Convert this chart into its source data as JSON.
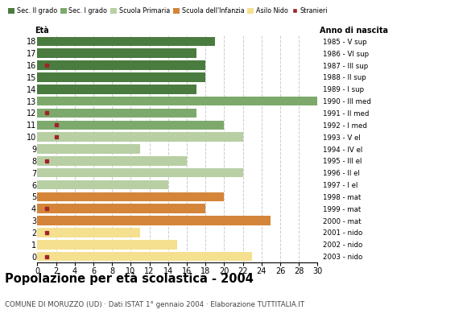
{
  "ages": [
    0,
    1,
    2,
    3,
    4,
    5,
    6,
    7,
    8,
    9,
    10,
    11,
    12,
    13,
    14,
    15,
    16,
    17,
    18
  ],
  "years": [
    "2003 - nido",
    "2002 - nido",
    "2001 - nido",
    "2000 - mat",
    "1999 - mat",
    "1998 - mat",
    "1997 - I el",
    "1996 - II el",
    "1995 - III el",
    "1994 - IV el",
    "1993 - V el",
    "1992 - I med",
    "1991 - II med",
    "1990 - III med",
    "1989 - I sup",
    "1988 - II sup",
    "1987 - III sup",
    "1986 - VI sup",
    "1985 - V sup"
  ],
  "bar_values": [
    23,
    15,
    11,
    25,
    18,
    20,
    14,
    22,
    16,
    11,
    22,
    20,
    17,
    30,
    17,
    18,
    18,
    17,
    19
  ],
  "stranieri": [
    1,
    0,
    1,
    0,
    1,
    0,
    0,
    0,
    1,
    0,
    2,
    2,
    1,
    0,
    0,
    0,
    1,
    0,
    0
  ],
  "bar_colors": [
    "#f5e090",
    "#f5e090",
    "#f5e090",
    "#d4853a",
    "#d4853a",
    "#d4853a",
    "#b8cfa4",
    "#b8cfa4",
    "#b8cfa4",
    "#b8cfa4",
    "#b8cfa4",
    "#7daa6c",
    "#7daa6c",
    "#7daa6c",
    "#4a7c3f",
    "#4a7c3f",
    "#4a7c3f",
    "#4a7c3f",
    "#4a7c3f"
  ],
  "legend_labels": [
    "Sec. II grado",
    "Sec. I grado",
    "Scuola Primaria",
    "Scuola dell'Infanzia",
    "Asilo Nido",
    "Stranieri"
  ],
  "legend_colors": [
    "#4a7c3f",
    "#7daa6c",
    "#b8cfa4",
    "#d4853a",
    "#f5e090",
    "#a0232a"
  ],
  "stranieri_color": "#a0232a",
  "title": "Popolazione per età scolastica - 2004",
  "subtitle": "COMUNE DI MORUZZO (UD) · Dati ISTAT 1° gennaio 2004 · Elaborazione TUTTITALIA.IT",
  "xlabel_eta": "Età",
  "xlabel_anno": "Anno di nascita",
  "xlim": [
    0,
    30
  ],
  "xticks": [
    0,
    2,
    4,
    6,
    8,
    10,
    12,
    14,
    16,
    18,
    20,
    22,
    24,
    26,
    28,
    30
  ],
  "background_color": "#ffffff",
  "grid_color": "#cccccc"
}
